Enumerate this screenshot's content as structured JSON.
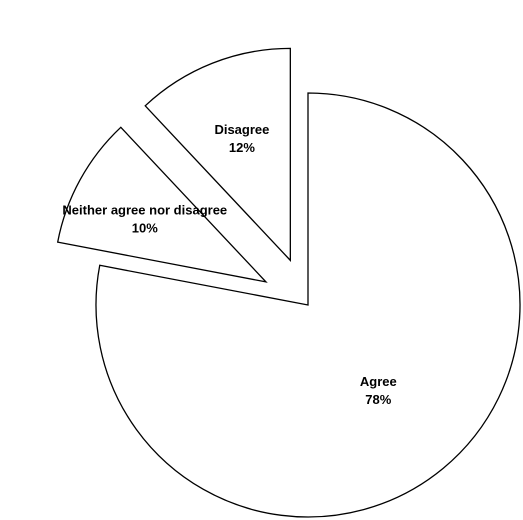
{
  "chart_data": {
    "type": "pie",
    "title": "",
    "slices": [
      {
        "name": "Agree",
        "value": 78,
        "label": "78%",
        "exploded": false
      },
      {
        "name": "Neither agree nor disagree",
        "value": 10,
        "label": "10%",
        "exploded": true
      },
      {
        "name": "Disagree",
        "value": 12,
        "label": "12%",
        "exploded": true
      }
    ],
    "unit": "%",
    "legend": "none",
    "fill_color": "#ffffff",
    "stroke_color": "#000000"
  }
}
